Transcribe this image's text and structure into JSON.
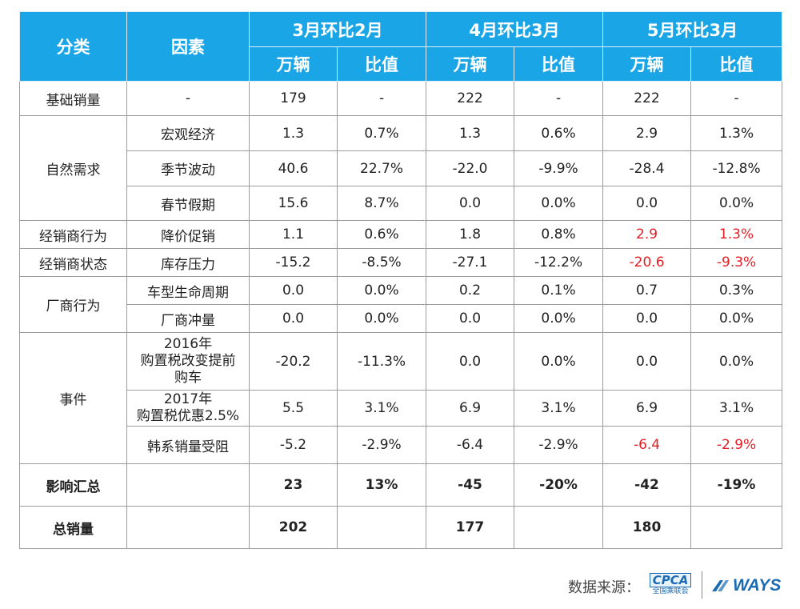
{
  "table": {
    "headers": {
      "category": "分类",
      "factor": "因素",
      "group1": "3月环比2月",
      "group2": "4月环比3月",
      "group3": "5月环比3月",
      "units": "万辆",
      "ratio": "比值"
    },
    "rows": [
      {
        "category": "基础销量",
        "factor": "-",
        "v": [
          "179",
          "-",
          "222",
          "-",
          "222",
          "-"
        ]
      },
      {
        "category": "自然需求",
        "factor": "宏观经济",
        "v": [
          "1.3",
          "0.7%",
          "1.3",
          "0.6%",
          "2.9",
          "1.3%"
        ]
      },
      {
        "factor": "季节波动",
        "v": [
          "40.6",
          "22.7%",
          "-22.0",
          "-9.9%",
          "-28.4",
          "-12.8%"
        ]
      },
      {
        "factor": "春节假期",
        "v": [
          "15.6",
          "8.7%",
          "0.0",
          "0.0%",
          "0.0",
          "0.0%"
        ]
      },
      {
        "category": "经销商行为",
        "factor": "降价促销",
        "v": [
          "1.1",
          "0.6%",
          "1.8",
          "0.8%",
          "2.9",
          "1.3%"
        ]
      },
      {
        "category": "经销商状态",
        "factor": "库存压力",
        "v": [
          "-15.2",
          "-8.5%",
          "-27.1",
          "-12.2%",
          "-20.6",
          "-9.3%"
        ]
      },
      {
        "category": "厂商行为",
        "factor": "车型生命周期",
        "v": [
          "0.0",
          "0.0%",
          "0.2",
          "0.1%",
          "0.7",
          "0.3%"
        ]
      },
      {
        "factor": "厂商冲量",
        "v": [
          "0.0",
          "0.0%",
          "0.0",
          "0.0%",
          "0.0",
          "0.0%"
        ]
      },
      {
        "category": "事件",
        "factor_lines": [
          "2016年",
          "购置税改变提前",
          "购车"
        ],
        "v": [
          "-20.2",
          "-11.3%",
          "0.0",
          "0.0%",
          "0.0",
          "0.0%"
        ]
      },
      {
        "factor_lines": [
          "2017年",
          "购置税优惠2.5%"
        ],
        "v": [
          "5.5",
          "3.1%",
          "6.9",
          "3.1%",
          "6.9",
          "3.1%"
        ]
      },
      {
        "factor": "韩系销量受阻",
        "v": [
          "-5.2",
          "-2.9%",
          "-6.4",
          "-2.9%",
          "-6.4",
          "-2.9%"
        ]
      },
      {
        "category": "影响汇总",
        "factor": "",
        "v": [
          "23",
          "13%",
          "-45",
          "-20%",
          "-42",
          "-19%"
        ]
      },
      {
        "category": "总销量",
        "factor": "",
        "v": [
          "202",
          "",
          "177",
          "",
          "180",
          ""
        ]
      }
    ]
  },
  "footer": {
    "source_label": "数据来源：",
    "cpca_logo": "CPCA",
    "cpca_sub": "全国乘联会",
    "ways_logo": "WAYS"
  },
  "colors": {
    "header_bg": "#1aa5e6",
    "highlight_red": "#e31e25",
    "border": "#9c9c9c"
  }
}
